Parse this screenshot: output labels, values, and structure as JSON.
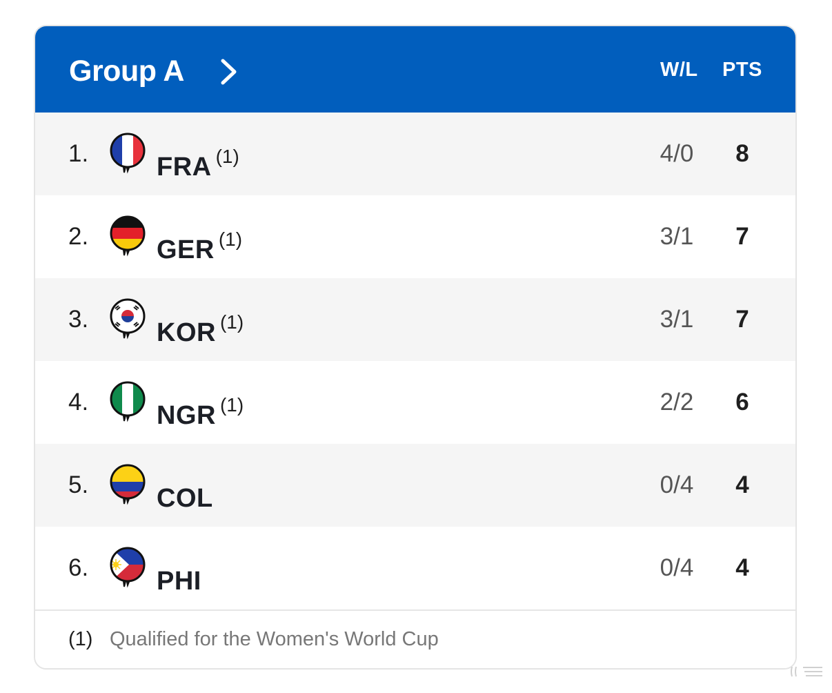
{
  "header": {
    "title": "Group A",
    "col_wl": "W/L",
    "col_pts": "PTS"
  },
  "standings": [
    {
      "rank": "1.",
      "team": "FRA",
      "qual": "(1)",
      "wl": "4/0",
      "pts": "8",
      "flag": "france-flag-icon"
    },
    {
      "rank": "2.",
      "team": "GER",
      "qual": "(1)",
      "wl": "3/1",
      "pts": "7",
      "flag": "germany-flag-icon"
    },
    {
      "rank": "3.",
      "team": "KOR",
      "qual": "(1)",
      "wl": "3/1",
      "pts": "7",
      "flag": "south-korea-flag-icon"
    },
    {
      "rank": "4.",
      "team": "NGR",
      "qual": "(1)",
      "wl": "2/2",
      "pts": "6",
      "flag": "nigeria-flag-icon"
    },
    {
      "rank": "5.",
      "team": "COL",
      "qual": "",
      "wl": "0/4",
      "pts": "4",
      "flag": "colombia-flag-icon"
    },
    {
      "rank": "6.",
      "team": "PHI",
      "qual": "",
      "wl": "0/4",
      "pts": "4",
      "flag": "philippines-flag-icon"
    }
  ],
  "footer": {
    "mark": "(1)",
    "text": "Qualified for the Women's World Cup"
  },
  "colors": {
    "header_bg": "#015ebd",
    "row_alt": "#f5f5f5",
    "text_dark": "#1c1f26",
    "text_muted": "#777777"
  }
}
